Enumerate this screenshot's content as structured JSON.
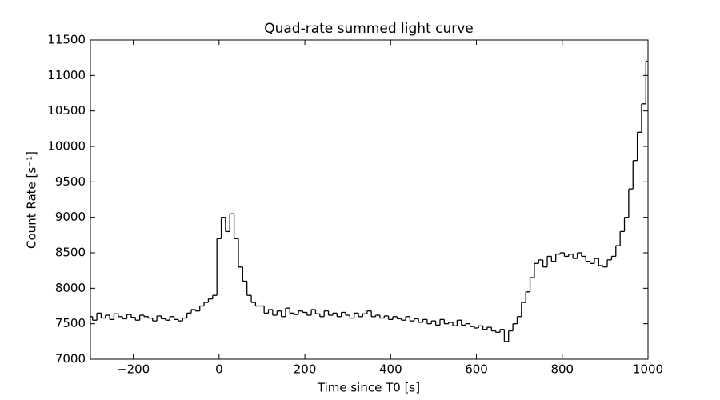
{
  "chart_data": {
    "type": "line",
    "drawstyle": "steps-mid",
    "title": "Quad-rate summed light curve",
    "xlabel": "Time since T0 [s]",
    "ylabel": "Count Rate [s⁻¹]",
    "color": "#000000",
    "xlim": [
      -300,
      1000
    ],
    "xticks": [
      {
        "value": -200,
        "label": "−200"
      },
      0,
      200,
      400,
      600,
      800,
      1000
    ],
    "ylim": [
      7000,
      11500
    ],
    "yticks": [
      7000,
      7500,
      8000,
      8500,
      9000,
      9500,
      10000,
      10500,
      11000,
      11500
    ],
    "x": [
      -300,
      -290,
      -280,
      -270,
      -260,
      -250,
      -240,
      -230,
      -220,
      -210,
      -200,
      -190,
      -180,
      -170,
      -160,
      -150,
      -140,
      -130,
      -120,
      -110,
      -100,
      -90,
      -80,
      -70,
      -60,
      -50,
      -40,
      -30,
      -20,
      -10,
      0,
      10,
      20,
      30,
      40,
      50,
      60,
      70,
      80,
      90,
      100,
      110,
      120,
      130,
      140,
      150,
      160,
      170,
      180,
      190,
      200,
      210,
      220,
      230,
      240,
      250,
      260,
      270,
      280,
      290,
      300,
      310,
      320,
      330,
      340,
      350,
      360,
      370,
      380,
      390,
      400,
      410,
      420,
      430,
      440,
      450,
      460,
      470,
      480,
      490,
      500,
      510,
      520,
      530,
      540,
      550,
      560,
      570,
      580,
      590,
      600,
      610,
      620,
      630,
      640,
      650,
      660,
      670,
      680,
      690,
      700,
      710,
      720,
      730,
      740,
      750,
      760,
      770,
      780,
      790,
      800,
      810,
      820,
      830,
      840,
      850,
      860,
      870,
      880,
      890,
      900,
      910,
      920,
      930,
      940,
      950,
      960,
      970,
      980,
      990,
      1000
    ],
    "values": [
      7600,
      7550,
      7650,
      7580,
      7620,
      7560,
      7640,
      7600,
      7570,
      7630,
      7590,
      7550,
      7620,
      7600,
      7580,
      7540,
      7610,
      7570,
      7550,
      7600,
      7560,
      7540,
      7580,
      7650,
      7700,
      7680,
      7750,
      7800,
      7850,
      7900,
      8700,
      9000,
      8800,
      9050,
      8700,
      8300,
      8100,
      7900,
      7800,
      7750,
      7750,
      7650,
      7700,
      7620,
      7680,
      7600,
      7720,
      7650,
      7630,
      7680,
      7660,
      7620,
      7700,
      7640,
      7600,
      7680,
      7620,
      7650,
      7600,
      7660,
      7620,
      7580,
      7650,
      7600,
      7640,
      7680,
      7600,
      7620,
      7580,
      7610,
      7560,
      7600,
      7570,
      7550,
      7600,
      7540,
      7570,
      7520,
      7560,
      7500,
      7540,
      7480,
      7560,
      7500,
      7520,
      7470,
      7550,
      7480,
      7500,
      7460,
      7440,
      7470,
      7420,
      7450,
      7400,
      7380,
      7420,
      7250,
      7400,
      7500,
      7600,
      7800,
      7950,
      8150,
      8350,
      8400,
      8300,
      8450,
      8380,
      8480,
      8500,
      8450,
      8480,
      8420,
      8500,
      8450,
      8380,
      8350,
      8420,
      8320,
      8300,
      8400,
      8450,
      8600,
      8800,
      9000,
      9400,
      9800,
      10200,
      10600,
      11200
    ]
  }
}
